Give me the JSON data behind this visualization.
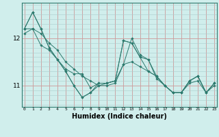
{
  "background_color": "#d0eeec",
  "grid_color_major": "#cc9999",
  "grid_color_minor": "#aacccc",
  "line_color": "#2d7a6e",
  "marker_color": "#2d7a6e",
  "xlabel": "Humidex (Indice chaleur)",
  "xlabel_fontsize": 7,
  "ytick_labels": [
    "11",
    "12"
  ],
  "ytick_positions": [
    11.0,
    12.0
  ],
  "ylim": [
    10.55,
    12.75
  ],
  "xlim": [
    -0.3,
    23.3
  ],
  "series_with_markers": [
    {
      "x": [
        0,
        1,
        2,
        3,
        4,
        5,
        6,
        7,
        8,
        9,
        10,
        11,
        12,
        13,
        14,
        15,
        16,
        17,
        18,
        19,
        20,
        21,
        22,
        23
      ],
      "y": [
        12.2,
        12.55,
        12.2,
        11.8,
        11.55,
        11.3,
        11.0,
        10.75,
        10.85,
        11.05,
        11.05,
        11.1,
        11.45,
        12.0,
        11.65,
        11.55,
        11.15,
        11.0,
        10.85,
        10.85,
        11.1,
        11.2,
        10.85,
        11.05
      ]
    },
    {
      "x": [
        0,
        1,
        2,
        3,
        4,
        5,
        6,
        7,
        8,
        9,
        10,
        11,
        12,
        13,
        14,
        15,
        16,
        17,
        18,
        19,
        20,
        21,
        22,
        23
      ],
      "y": [
        12.2,
        12.55,
        12.2,
        11.8,
        11.55,
        11.3,
        11.0,
        10.75,
        10.85,
        11.0,
        11.05,
        11.1,
        11.95,
        11.9,
        11.6,
        11.55,
        11.2,
        11.0,
        10.85,
        10.85,
        11.1,
        11.2,
        10.85,
        11.05
      ]
    },
    {
      "x": [
        0,
        1,
        2,
        3,
        4,
        5,
        6,
        7,
        8,
        9,
        10,
        11,
        12,
        13,
        14,
        15,
        16,
        17,
        18,
        19,
        20,
        21,
        22,
        23
      ],
      "y": [
        12.1,
        12.2,
        11.85,
        11.75,
        11.55,
        11.35,
        11.25,
        11.25,
        10.95,
        11.05,
        11.05,
        11.1,
        11.95,
        11.9,
        11.6,
        11.3,
        11.2,
        11.0,
        10.85,
        10.85,
        11.1,
        11.2,
        10.85,
        11.05
      ]
    },
    {
      "x": [
        0,
        1,
        2,
        3,
        4,
        5,
        6,
        7,
        8,
        9,
        10,
        11,
        12,
        13,
        14,
        15,
        16,
        17,
        18,
        19,
        20,
        21,
        22,
        23
      ],
      "y": [
        12.2,
        12.2,
        12.1,
        11.9,
        11.75,
        11.5,
        11.35,
        11.2,
        11.1,
        11.0,
        11.0,
        11.05,
        11.45,
        11.5,
        11.4,
        11.3,
        11.2,
        11.0,
        10.85,
        10.85,
        11.05,
        11.1,
        10.85,
        11.0
      ]
    }
  ]
}
